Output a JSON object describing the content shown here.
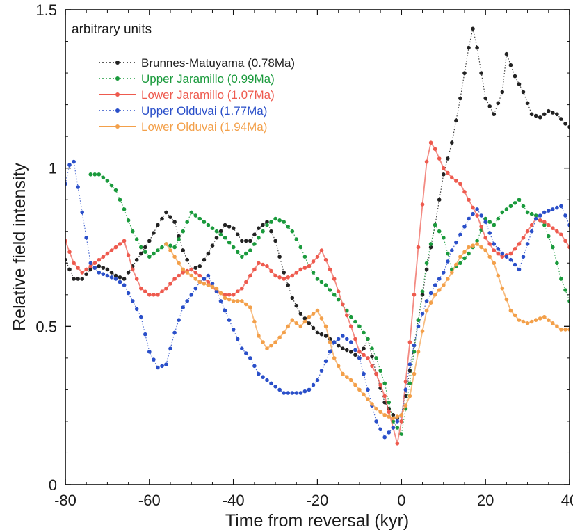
{
  "chart_data": {
    "type": "line",
    "xlabel": "Time from reversal (kyr)",
    "ylabel": "Relative field intensity",
    "annotation": "arbitrary units",
    "xlim": [
      -80,
      40
    ],
    "ylim": [
      0,
      1.5
    ],
    "x_ticks": [
      "-80",
      "-60",
      "-40",
      "-20",
      "0",
      "20",
      "40"
    ],
    "y_ticks": [
      "0",
      "0.5",
      "1",
      "1.5"
    ],
    "grid": false,
    "legend_position": "top-left",
    "series": [
      {
        "name": "Brunnes-Matuyama (0.78Ma)",
        "color": "#222222",
        "style": "dotted",
        "points": [
          [
            -80,
            0.71
          ],
          [
            -78,
            0.65
          ],
          [
            -76,
            0.65
          ],
          [
            -74,
            0.68
          ],
          [
            -72,
            0.69
          ],
          [
            -70,
            0.68
          ],
          [
            -68,
            0.66
          ],
          [
            -66,
            0.65
          ],
          [
            -64,
            0.69
          ],
          [
            -62,
            0.73
          ],
          [
            -60,
            0.77
          ],
          [
            -58,
            0.82
          ],
          [
            -56,
            0.86
          ],
          [
            -54,
            0.83
          ],
          [
            -52,
            0.74
          ],
          [
            -50,
            0.68
          ],
          [
            -48,
            0.69
          ],
          [
            -46,
            0.73
          ],
          [
            -44,
            0.78
          ],
          [
            -42,
            0.82
          ],
          [
            -40,
            0.81
          ],
          [
            -38,
            0.77
          ],
          [
            -36,
            0.77
          ],
          [
            -34,
            0.81
          ],
          [
            -32,
            0.83
          ],
          [
            -30,
            0.77
          ],
          [
            -28,
            0.67
          ],
          [
            -26,
            0.59
          ],
          [
            -24,
            0.54
          ],
          [
            -22,
            0.51
          ],
          [
            -20,
            0.48
          ],
          [
            -18,
            0.47
          ],
          [
            -16,
            0.45
          ],
          [
            -14,
            0.43
          ],
          [
            -12,
            0.42
          ],
          [
            -10,
            0.4
          ],
          [
            -8,
            0.46
          ],
          [
            -6,
            0.35
          ],
          [
            -4,
            0.26
          ],
          [
            -2,
            0.22
          ],
          [
            0,
            0.2
          ],
          [
            2,
            0.36
          ],
          [
            4,
            0.52
          ],
          [
            6,
            0.68
          ],
          [
            8,
            0.82
          ],
          [
            10,
            0.98
          ],
          [
            12,
            1.08
          ],
          [
            14,
            1.22
          ],
          [
            16,
            1.38
          ],
          [
            17,
            1.44
          ],
          [
            18,
            1.38
          ],
          [
            20,
            1.22
          ],
          [
            22,
            1.17
          ],
          [
            24,
            1.24
          ],
          [
            25,
            1.36
          ],
          [
            27,
            1.29
          ],
          [
            29,
            1.24
          ],
          [
            31,
            1.17
          ],
          [
            33,
            1.16
          ],
          [
            35,
            1.18
          ],
          [
            37,
            1.17
          ],
          [
            39,
            1.14
          ],
          [
            40,
            1.13
          ]
        ]
      },
      {
        "name": "Upper Jaramillo (0.99Ma)",
        "color": "#1a9a3c",
        "style": "dotted",
        "points": [
          [
            -74,
            0.98
          ],
          [
            -72,
            0.98
          ],
          [
            -70,
            0.96
          ],
          [
            -68,
            0.93
          ],
          [
            -66,
            0.87
          ],
          [
            -64,
            0.8
          ],
          [
            -62,
            0.75
          ],
          [
            -60,
            0.72
          ],
          [
            -58,
            0.74
          ],
          [
            -56,
            0.76
          ],
          [
            -54,
            0.75
          ],
          [
            -52,
            0.8
          ],
          [
            -50,
            0.86
          ],
          [
            -48,
            0.84
          ],
          [
            -46,
            0.82
          ],
          [
            -44,
            0.8
          ],
          [
            -42,
            0.78
          ],
          [
            -40,
            0.75
          ],
          [
            -38,
            0.72
          ],
          [
            -36,
            0.74
          ],
          [
            -34,
            0.78
          ],
          [
            -32,
            0.82
          ],
          [
            -30,
            0.84
          ],
          [
            -28,
            0.83
          ],
          [
            -26,
            0.8
          ],
          [
            -24,
            0.75
          ],
          [
            -22,
            0.69
          ],
          [
            -20,
            0.65
          ],
          [
            -18,
            0.63
          ],
          [
            -16,
            0.6
          ],
          [
            -14,
            0.57
          ],
          [
            -12,
            0.53
          ],
          [
            -10,
            0.5
          ],
          [
            -8,
            0.46
          ],
          [
            -6,
            0.4
          ],
          [
            -4,
            0.32
          ],
          [
            -2,
            0.2
          ],
          [
            0,
            0.16
          ],
          [
            2,
            0.32
          ],
          [
            4,
            0.52
          ],
          [
            6,
            0.7
          ],
          [
            8,
            0.82
          ],
          [
            10,
            0.78
          ],
          [
            12,
            0.68
          ],
          [
            14,
            0.7
          ],
          [
            16,
            0.73
          ],
          [
            18,
            0.77
          ],
          [
            20,
            0.84
          ],
          [
            22,
            0.82
          ],
          [
            24,
            0.86
          ],
          [
            26,
            0.88
          ],
          [
            28,
            0.9
          ],
          [
            30,
            0.86
          ],
          [
            32,
            0.85
          ],
          [
            34,
            0.82
          ],
          [
            36,
            0.75
          ],
          [
            38,
            0.65
          ],
          [
            40,
            0.58
          ]
        ]
      },
      {
        "name": "Lower Jaramillo (1.07Ma)",
        "color": "#ee5a4e",
        "style": "solid",
        "points": [
          [
            -80,
            0.77
          ],
          [
            -78,
            0.7
          ],
          [
            -76,
            0.67
          ],
          [
            -74,
            0.69
          ],
          [
            -72,
            0.71
          ],
          [
            -70,
            0.73
          ],
          [
            -68,
            0.75
          ],
          [
            -66,
            0.77
          ],
          [
            -64,
            0.68
          ],
          [
            -62,
            0.62
          ],
          [
            -60,
            0.6
          ],
          [
            -58,
            0.6
          ],
          [
            -56,
            0.62
          ],
          [
            -54,
            0.65
          ],
          [
            -52,
            0.67
          ],
          [
            -50,
            0.68
          ],
          [
            -48,
            0.66
          ],
          [
            -46,
            0.64
          ],
          [
            -44,
            0.61
          ],
          [
            -42,
            0.6
          ],
          [
            -40,
            0.6
          ],
          [
            -38,
            0.62
          ],
          [
            -36,
            0.66
          ],
          [
            -34,
            0.7
          ],
          [
            -32,
            0.69
          ],
          [
            -30,
            0.66
          ],
          [
            -28,
            0.65
          ],
          [
            -26,
            0.66
          ],
          [
            -24,
            0.68
          ],
          [
            -22,
            0.69
          ],
          [
            -20,
            0.72
          ],
          [
            -19,
            0.74
          ],
          [
            -18,
            0.71
          ],
          [
            -16,
            0.65
          ],
          [
            -14,
            0.57
          ],
          [
            -12,
            0.5
          ],
          [
            -10,
            0.42
          ],
          [
            -8,
            0.4
          ],
          [
            -6,
            0.35
          ],
          [
            -4,
            0.28
          ],
          [
            -2,
            0.18
          ],
          [
            -1,
            0.13
          ],
          [
            0,
            0.2
          ],
          [
            2,
            0.45
          ],
          [
            4,
            0.75
          ],
          [
            6,
            1.02
          ],
          [
            7,
            1.08
          ],
          [
            8,
            1.06
          ],
          [
            10,
            1.0
          ],
          [
            12,
            0.97
          ],
          [
            14,
            0.95
          ],
          [
            16,
            0.9
          ],
          [
            18,
            0.85
          ],
          [
            20,
            0.78
          ],
          [
            22,
            0.74
          ],
          [
            24,
            0.72
          ],
          [
            26,
            0.73
          ],
          [
            28,
            0.76
          ],
          [
            30,
            0.8
          ],
          [
            32,
            0.84
          ],
          [
            34,
            0.83
          ],
          [
            36,
            0.81
          ],
          [
            38,
            0.79
          ],
          [
            40,
            0.75
          ]
        ]
      },
      {
        "name": "Upper Olduvai (1.77Ma)",
        "color": "#2a4fc9",
        "style": "dotted",
        "points": [
          [
            -80,
            0.95
          ],
          [
            -79,
            1.01
          ],
          [
            -78,
            1.02
          ],
          [
            -76,
            0.86
          ],
          [
            -74,
            0.7
          ],
          [
            -72,
            0.67
          ],
          [
            -70,
            0.66
          ],
          [
            -68,
            0.65
          ],
          [
            -66,
            0.63
          ],
          [
            -64,
            0.58
          ],
          [
            -62,
            0.53
          ],
          [
            -60,
            0.42
          ],
          [
            -58,
            0.37
          ],
          [
            -56,
            0.38
          ],
          [
            -54,
            0.48
          ],
          [
            -52,
            0.56
          ],
          [
            -50,
            0.6
          ],
          [
            -48,
            0.64
          ],
          [
            -46,
            0.66
          ],
          [
            -44,
            0.61
          ],
          [
            -42,
            0.55
          ],
          [
            -40,
            0.49
          ],
          [
            -38,
            0.43
          ],
          [
            -36,
            0.4
          ],
          [
            -34,
            0.35
          ],
          [
            -32,
            0.33
          ],
          [
            -30,
            0.31
          ],
          [
            -28,
            0.29
          ],
          [
            -26,
            0.29
          ],
          [
            -24,
            0.29
          ],
          [
            -22,
            0.3
          ],
          [
            -20,
            0.33
          ],
          [
            -18,
            0.39
          ],
          [
            -16,
            0.45
          ],
          [
            -14,
            0.47
          ],
          [
            -12,
            0.45
          ],
          [
            -10,
            0.4
          ],
          [
            -8,
            0.3
          ],
          [
            -6,
            0.2
          ],
          [
            -4,
            0.15
          ],
          [
            -2,
            0.18
          ],
          [
            0,
            0.22
          ],
          [
            2,
            0.38
          ],
          [
            4,
            0.5
          ],
          [
            6,
            0.58
          ],
          [
            8,
            0.63
          ],
          [
            10,
            0.67
          ],
          [
            12,
            0.74
          ],
          [
            14,
            0.79
          ],
          [
            16,
            0.84
          ],
          [
            18,
            0.87
          ],
          [
            20,
            0.83
          ],
          [
            22,
            0.76
          ],
          [
            24,
            0.73
          ],
          [
            26,
            0.71
          ],
          [
            28,
            0.68
          ],
          [
            30,
            0.76
          ],
          [
            32,
            0.84
          ],
          [
            34,
            0.86
          ],
          [
            36,
            0.87
          ],
          [
            38,
            0.88
          ],
          [
            40,
            0.82
          ]
        ]
      },
      {
        "name": "Lower Olduvai (1.94Ma)",
        "color": "#f3a04a",
        "style": "solid",
        "points": [
          [
            -56,
            0.76
          ],
          [
            -54,
            0.72
          ],
          [
            -52,
            0.68
          ],
          [
            -50,
            0.66
          ],
          [
            -48,
            0.64
          ],
          [
            -46,
            0.63
          ],
          [
            -44,
            0.62
          ],
          [
            -42,
            0.59
          ],
          [
            -40,
            0.58
          ],
          [
            -38,
            0.58
          ],
          [
            -36,
            0.56
          ],
          [
            -34,
            0.47
          ],
          [
            -32,
            0.43
          ],
          [
            -30,
            0.45
          ],
          [
            -28,
            0.48
          ],
          [
            -26,
            0.52
          ],
          [
            -24,
            0.5
          ],
          [
            -22,
            0.53
          ],
          [
            -20,
            0.55
          ],
          [
            -18,
            0.5
          ],
          [
            -16,
            0.4
          ],
          [
            -14,
            0.35
          ],
          [
            -12,
            0.33
          ],
          [
            -10,
            0.3
          ],
          [
            -8,
            0.27
          ],
          [
            -6,
            0.24
          ],
          [
            -4,
            0.22
          ],
          [
            -2,
            0.21
          ],
          [
            0,
            0.22
          ],
          [
            2,
            0.28
          ],
          [
            4,
            0.42
          ],
          [
            6,
            0.55
          ],
          [
            8,
            0.6
          ],
          [
            10,
            0.63
          ],
          [
            12,
            0.67
          ],
          [
            14,
            0.72
          ],
          [
            16,
            0.75
          ],
          [
            18,
            0.76
          ],
          [
            20,
            0.74
          ],
          [
            22,
            0.7
          ],
          [
            24,
            0.62
          ],
          [
            26,
            0.55
          ],
          [
            28,
            0.52
          ],
          [
            30,
            0.51
          ],
          [
            32,
            0.52
          ],
          [
            34,
            0.53
          ],
          [
            36,
            0.51
          ],
          [
            38,
            0.49
          ],
          [
            40,
            0.49
          ]
        ]
      }
    ]
  }
}
